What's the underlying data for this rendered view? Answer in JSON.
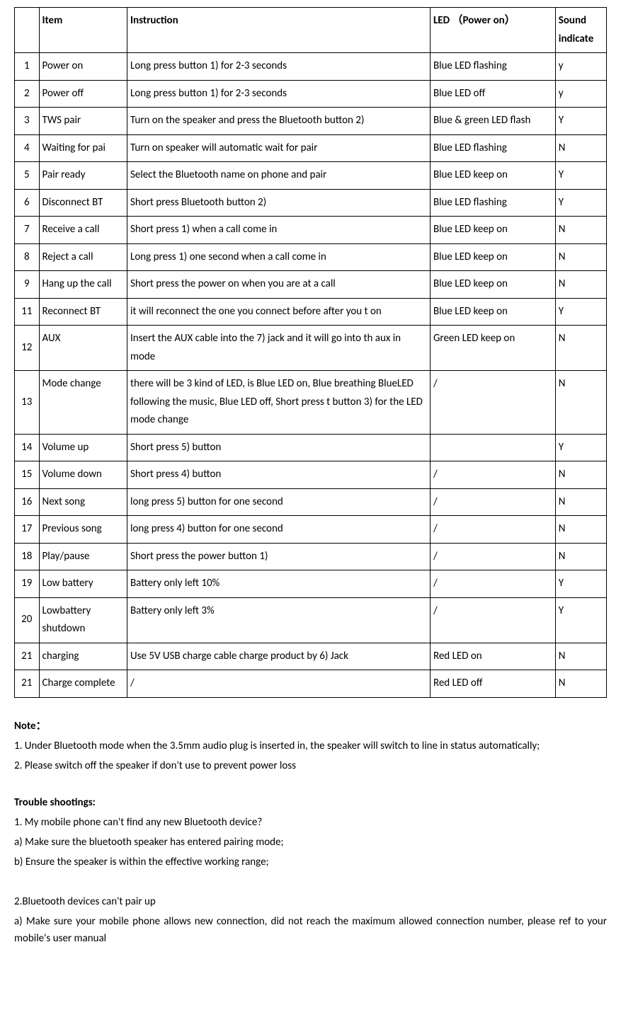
{
  "table": {
    "headers": [
      "",
      "Item",
      "Instruction",
      "LED  （Power on）",
      "Sound indicate"
    ],
    "rows": [
      [
        "1",
        "Power on",
        "Long press button 1) for 2-3 seconds",
        "Blue LED flashing",
        "y"
      ],
      [
        "2",
        "Power off",
        "Long press button 1) for 2-3 seconds",
        "Blue LED off",
        "y"
      ],
      [
        "3",
        "TWS pair",
        "Turn on the speaker and press the Bluetooth button 2)",
        "Blue & green LED flash",
        "Y"
      ],
      [
        "4",
        "Waiting for pai",
        "Turn on speaker will automatic wait for pair",
        "Blue LED flashing",
        "N"
      ],
      [
        "5",
        "Pair ready",
        "Select the Bluetooth name on phone and pair",
        "Blue LED keep on",
        "Y"
      ],
      [
        "6",
        "Disconnect BT",
        "Short press Bluetooth button 2)",
        "Blue LED flashing",
        "Y"
      ],
      [
        "7",
        "Receive a call",
        "Short press 1) when a call come in",
        "Blue LED keep on",
        "N"
      ],
      [
        "8",
        "Reject a call",
        "Long press 1) one second when a call come in",
        "Blue LED keep on",
        "N"
      ],
      [
        "9",
        "Hang up the call",
        "Short press the power on when you are at a call",
        "Blue LED keep on",
        "N"
      ],
      [
        "11",
        "Reconnect BT",
        "it will reconnect the one you connect before after you t on",
        "Blue LED keep on",
        "Y"
      ],
      [
        "12",
        "AUX",
        "Insert the AUX cable into the 7) jack and it will go into th aux in mode",
        "Green LED keep on",
        "N"
      ],
      [
        "13",
        "Mode change",
        "there will be 3 kind of LED, is Blue LED on, Blue breathing BlueLED following the music, Blue LED off, Short press t button 3) for the LED mode change",
        "/",
        "N"
      ],
      [
        "14",
        "Volume up",
        "Short press 5) button",
        "",
        "Y"
      ],
      [
        "15",
        "Volume down",
        "Short press 4) button",
        "/",
        "N"
      ],
      [
        "16",
        "Next song",
        "long press 5) button for one second",
        "/",
        "N"
      ],
      [
        "17",
        "Previous song",
        "long press 4) button for one second",
        "/",
        "N"
      ],
      [
        "18",
        "Play/pause",
        "Short press the power button 1)",
        "/",
        "N"
      ],
      [
        "19",
        "Low battery",
        "Battery only left 10%",
        "/",
        "Y"
      ],
      [
        "20",
        "Lowbattery shutdown",
        "Battery only left 3%",
        "/",
        "Y"
      ],
      [
        "21",
        "charging",
        "Use 5V USB charge cable charge product by 6) Jack",
        "Red LED on",
        "N"
      ],
      [
        "21",
        "Charge complete",
        " /",
        "Red LED off",
        "N"
      ]
    ]
  },
  "notes": {
    "title": "Note：",
    "lines": [
      "1. Under Bluetooth mode when the 3.5mm audio plug is inserted in, the speaker will switch to line in status automatically;",
      "2. Please switch off the speaker if don't use to prevent power loss"
    ]
  },
  "troubleshooting": {
    "title": "Trouble shootings:",
    "lines": [
      "1. My mobile phone can't find any new Bluetooth device?",
      "a) Make sure the bluetooth speaker has entered pairing mode;",
      "b) Ensure the speaker is within the effective working range;",
      "",
      "2.Bluetooth devices can't pair up",
      "a) Make sure your mobile phone allows new connection, did not reach the maximum allowed connection number, please ref to your mobile's user manual"
    ]
  }
}
